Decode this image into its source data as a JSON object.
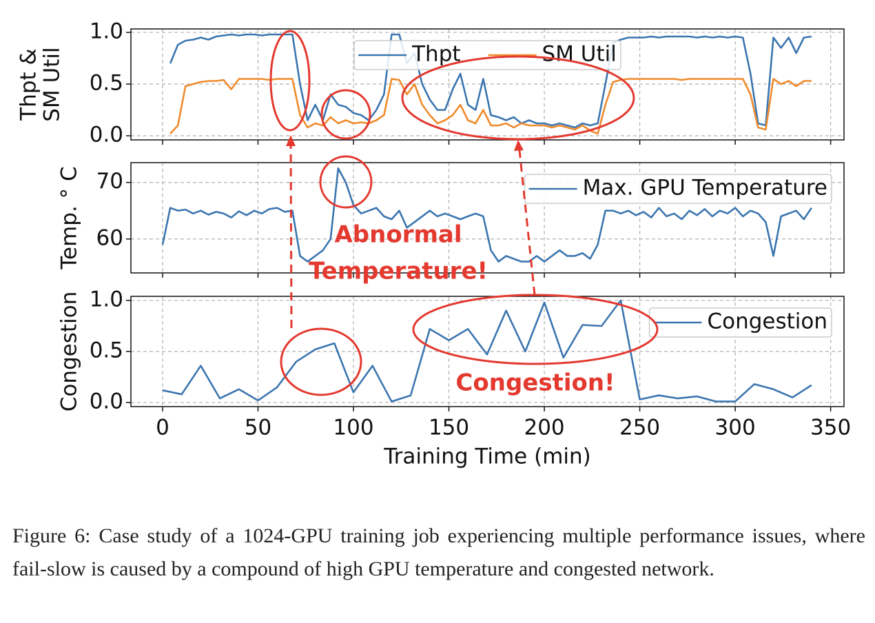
{
  "chart_data": [
    {
      "type": "line",
      "ylabel": [
        "Thpt &",
        "SM Util"
      ],
      "x": [
        4,
        8,
        12,
        16,
        20,
        24,
        28,
        32,
        36,
        40,
        44,
        48,
        52,
        56,
        60,
        64,
        68,
        72,
        76,
        80,
        84,
        88,
        92,
        96,
        100,
        104,
        108,
        112,
        116,
        120,
        124,
        128,
        132,
        136,
        140,
        144,
        148,
        152,
        156,
        160,
        164,
        168,
        172,
        176,
        180,
        184,
        188,
        192,
        196,
        200,
        204,
        208,
        212,
        216,
        220,
        224,
        228,
        232,
        236,
        240,
        244,
        248,
        252,
        256,
        260,
        264,
        268,
        272,
        276,
        280,
        284,
        288,
        292,
        296,
        300,
        304,
        308,
        312,
        316,
        320,
        324,
        328,
        332,
        336,
        340
      ],
      "series": [
        {
          "name": "Thpt",
          "color": "#3b75af",
          "values": [
            0.7,
            0.88,
            0.92,
            0.93,
            0.95,
            0.93,
            0.96,
            0.97,
            0.98,
            0.97,
            0.98,
            0.98,
            0.97,
            0.98,
            0.98,
            0.98,
            0.98,
            0.5,
            0.15,
            0.3,
            0.15,
            0.4,
            0.3,
            0.28,
            0.22,
            0.2,
            0.15,
            0.25,
            0.4,
            0.98,
            0.98,
            0.7,
            0.8,
            0.5,
            0.35,
            0.25,
            0.25,
            0.45,
            0.6,
            0.3,
            0.25,
            0.55,
            0.2,
            0.18,
            0.15,
            0.18,
            0.12,
            0.15,
            0.12,
            0.12,
            0.1,
            0.12,
            0.1,
            0.08,
            0.12,
            0.1,
            0.12,
            0.5,
            0.9,
            0.93,
            0.95,
            0.95,
            0.95,
            0.96,
            0.95,
            0.96,
            0.96,
            0.96,
            0.96,
            0.95,
            0.96,
            0.95,
            0.96,
            0.95,
            0.96,
            0.95,
            0.6,
            0.12,
            0.1,
            0.95,
            0.85,
            0.95,
            0.8,
            0.95,
            0.96
          ]
        },
        {
          "name": "SM Util",
          "color": "#ef8a2c",
          "values": [
            0.02,
            0.1,
            0.48,
            0.5,
            0.52,
            0.53,
            0.53,
            0.54,
            0.45,
            0.55,
            0.55,
            0.55,
            0.55,
            0.54,
            0.55,
            0.55,
            0.55,
            0.2,
            0.08,
            0.12,
            0.1,
            0.18,
            0.12,
            0.15,
            0.12,
            0.13,
            0.12,
            0.15,
            0.2,
            0.55,
            0.54,
            0.4,
            0.5,
            0.3,
            0.2,
            0.12,
            0.15,
            0.2,
            0.3,
            0.15,
            0.12,
            0.25,
            0.1,
            0.1,
            0.12,
            0.08,
            0.12,
            0.1,
            0.1,
            0.1,
            0.08,
            0.1,
            0.08,
            0.06,
            0.1,
            0.05,
            0.02,
            0.3,
            0.52,
            0.54,
            0.55,
            0.55,
            0.55,
            0.55,
            0.55,
            0.55,
            0.55,
            0.54,
            0.55,
            0.55,
            0.55,
            0.55,
            0.55,
            0.55,
            0.55,
            0.55,
            0.4,
            0.08,
            0.06,
            0.55,
            0.5,
            0.53,
            0.48,
            0.53,
            0.53
          ]
        }
      ],
      "xlim": [
        -16.6,
        357
      ],
      "xticks": [
        0,
        50,
        100,
        150,
        200,
        250,
        300,
        350
      ],
      "xtick_labels": false,
      "ylim": [
        -0.04,
        1.033
      ],
      "yticks": [
        {
          "value": 0,
          "label": "0.0"
        },
        0.5,
        {
          "value": 1,
          "label": "1.0"
        }
      ],
      "grid": true,
      "legend": "upper center"
    },
    {
      "type": "line",
      "ylabel": [
        "Temp. ° C"
      ],
      "x": [
        0,
        4,
        8,
        12,
        16,
        20,
        24,
        28,
        32,
        36,
        40,
        44,
        48,
        52,
        56,
        60,
        64,
        68,
        72,
        76,
        80,
        84,
        88,
        92,
        96,
        100,
        104,
        108,
        112,
        116,
        120,
        124,
        128,
        132,
        136,
        140,
        144,
        148,
        152,
        156,
        160,
        164,
        168,
        172,
        176,
        180,
        184,
        188,
        192,
        196,
        200,
        204,
        208,
        212,
        216,
        220,
        224,
        228,
        232,
        236,
        240,
        244,
        248,
        252,
        256,
        260,
        264,
        268,
        272,
        276,
        280,
        284,
        288,
        292,
        296,
        300,
        304,
        308,
        312,
        316,
        320,
        324,
        328,
        332,
        336,
        340
      ],
      "series": [
        {
          "name": "Max. GPU Temperature",
          "color": "#3b75af",
          "values": [
            59,
            65.5,
            65,
            65.2,
            64.5,
            65,
            64.3,
            64.8,
            64.5,
            63.8,
            64.9,
            64.2,
            65,
            64.5,
            65.3,
            65.5,
            64.8,
            65,
            57,
            56,
            57,
            58,
            60,
            72.5,
            70,
            66,
            64.5,
            65,
            65.5,
            64,
            63.5,
            65,
            62,
            63,
            64,
            65,
            64,
            64.5,
            64,
            63.5,
            64,
            64.5,
            64,
            58,
            56,
            57,
            56.5,
            56,
            56,
            57,
            56,
            57,
            58,
            57,
            57,
            57.5,
            56.5,
            59,
            65,
            65,
            64.5,
            65,
            64.2,
            64.8,
            63.8,
            65.5,
            64,
            64.5,
            63.5,
            65,
            64.2,
            65.3,
            64,
            65,
            64.5,
            65.5,
            64,
            65,
            64.5,
            63,
            57,
            64,
            64.5,
            65,
            63.5,
            65.5
          ]
        }
      ],
      "xlim": [
        -16.6,
        357
      ],
      "xticks": [
        0,
        50,
        100,
        150,
        200,
        250,
        300,
        350
      ],
      "xtick_labels": false,
      "ylim": [
        54.0,
        73.5
      ],
      "yticks": [
        60,
        70
      ],
      "grid": true,
      "legend": "upper right",
      "annotation": [
        "Abnormal",
        "Temperature!"
      ]
    },
    {
      "type": "line",
      "ylabel": [
        "Congestion"
      ],
      "xlabel": "Training Time (min)",
      "x": [
        0,
        10,
        20,
        30,
        40,
        50,
        60,
        70,
        80,
        90,
        100,
        110,
        120,
        130,
        140,
        150,
        160,
        170,
        180,
        190,
        200,
        210,
        220,
        230,
        240,
        250,
        260,
        270,
        280,
        290,
        300,
        310,
        320,
        330,
        340
      ],
      "series": [
        {
          "name": "Congestion",
          "color": "#3b75af",
          "values": [
            0.12,
            0.08,
            0.36,
            0.04,
            0.13,
            0.02,
            0.15,
            0.4,
            0.52,
            0.58,
            0.1,
            0.36,
            0.01,
            0.07,
            0.72,
            0.61,
            0.72,
            0.47,
            0.9,
            0.5,
            0.98,
            0.44,
            0.76,
            0.75,
            1.0,
            0.03,
            0.07,
            0.04,
            0.06,
            0.01,
            0.01,
            0.18,
            0.13,
            0.05,
            0.17
          ]
        }
      ],
      "xlim": [
        -16.6,
        357
      ],
      "xticks": [
        0,
        50,
        100,
        150,
        200,
        250,
        300,
        350
      ],
      "xtick_labels": true,
      "ylim": [
        -0.04,
        1.04
      ],
      "yticks": [
        {
          "value": 0,
          "label": "0.0"
        },
        0.5,
        {
          "value": 1,
          "label": "1.0"
        }
      ],
      "grid": true,
      "legend": "upper right",
      "annotation": [
        "Congestion!"
      ]
    }
  ],
  "caption": "Figure 6: Case study of a 1024-GPU training job experiencing multiple performance issues, where fail-slow is caused by a compound of high GPU temperature and congested network."
}
